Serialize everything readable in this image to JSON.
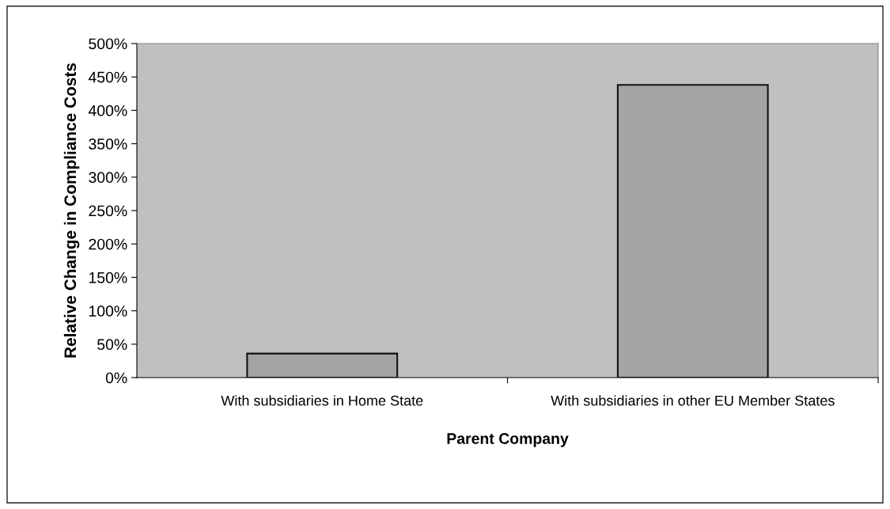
{
  "chart_data": {
    "type": "bar",
    "xlabel": "Parent Company",
    "ylabel": "Relative Change in Compliance Costs",
    "categories": [
      "With subsidiaries in Home State",
      "With subsidiaries in other EU Member States"
    ],
    "values": [
      36,
      438
    ],
    "color": "#a4a4a4",
    "ylim": [
      0,
      500
    ],
    "yticks": [
      {
        "value": 0,
        "label": "0%"
      },
      {
        "value": 50,
        "label": "50%"
      },
      {
        "value": 100,
        "label": "100%"
      },
      {
        "value": 150,
        "label": "150%"
      },
      {
        "value": 200,
        "label": "200%"
      },
      {
        "value": 250,
        "label": "250%"
      },
      {
        "value": 300,
        "label": "300%"
      },
      {
        "value": 350,
        "label": "350%"
      },
      {
        "value": 400,
        "label": "400%"
      },
      {
        "value": 450,
        "label": "450%"
      },
      {
        "value": 500,
        "label": "500%"
      }
    ],
    "grid": false,
    "legend": false
  }
}
